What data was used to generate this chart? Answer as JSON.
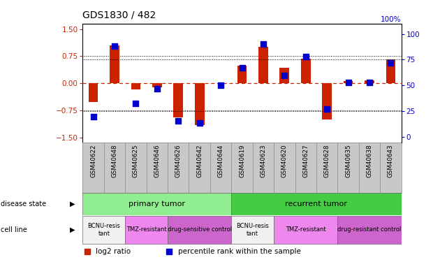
{
  "title": "GDS1830 / 482",
  "samples": [
    "GSM40622",
    "GSM40648",
    "GSM40625",
    "GSM40646",
    "GSM40626",
    "GSM40642",
    "GSM40644",
    "GSM40619",
    "GSM40623",
    "GSM40620",
    "GSM40627",
    "GSM40628",
    "GSM40635",
    "GSM40638",
    "GSM40643"
  ],
  "log2_ratio": [
    -0.52,
    1.05,
    -0.18,
    -0.12,
    -0.95,
    -1.15,
    0.0,
    0.48,
    1.0,
    0.42,
    0.68,
    -1.0,
    0.05,
    0.08,
    0.65
  ],
  "percentile": [
    20,
    88,
    33,
    47,
    16,
    14,
    50,
    67,
    90,
    60,
    78,
    27,
    53,
    53,
    72
  ],
  "ylim_left": [
    -1.65,
    1.65
  ],
  "ylim_right": [
    -5.5,
    110.0
  ],
  "yticks_left": [
    -1.5,
    -0.75,
    0,
    0.75,
    1.5
  ],
  "yticks_right": [
    0,
    25,
    50,
    75,
    100
  ],
  "bar_color": "#cc2200",
  "dot_color": "#0000cc",
  "sample_bg": "#c8c8c8",
  "ds_colors": [
    "#90ee90",
    "#44cc44"
  ],
  "ds_labels": [
    "primary tumor",
    "recurrent tumor"
  ],
  "ds_ranges": [
    [
      0,
      6
    ],
    [
      7,
      14
    ]
  ],
  "cl_configs": [
    [
      0,
      1,
      "#f0f0f0",
      "BCNU-resis\ntant"
    ],
    [
      2,
      3,
      "#ee88ee",
      "TMZ-resistant"
    ],
    [
      4,
      6,
      "#cc66cc",
      "drug-sensitive control"
    ],
    [
      7,
      8,
      "#f0f0f0",
      "BCNU-resis\ntant"
    ],
    [
      9,
      11,
      "#ee88ee",
      "TMZ-resistant"
    ],
    [
      12,
      14,
      "#cc66cc",
      "drug-resistant control"
    ]
  ],
  "tick_color_left": "#cc2200",
  "tick_color_right": "#0000cc"
}
